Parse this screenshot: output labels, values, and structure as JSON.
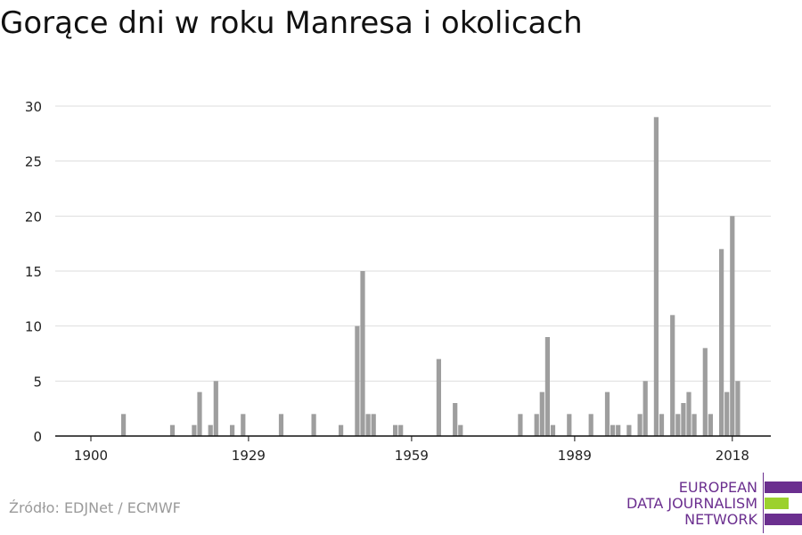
{
  "title": "Gorące dni w roku Manresa i okolicach",
  "source": "Źródło: EDJNet / ECMWF",
  "logo": {
    "lines": [
      "EUROPEAN",
      "DATA JOURNALISM",
      "NETWORK"
    ]
  },
  "colors": {
    "bar": "#9e9e9e",
    "grid": "#dddddd",
    "axis": "#111111",
    "logo_purple": "#6b2f8f",
    "logo_green": "#9cd12e"
  },
  "chart_data": {
    "type": "bar",
    "xlim": [
      1900,
      2022
    ],
    "ylim": [
      0,
      30
    ],
    "y_ticks": [
      0,
      5,
      10,
      15,
      20,
      25,
      30
    ],
    "x_ticks": [
      1900,
      1929,
      1959,
      1989,
      2018
    ],
    "grid": true,
    "xlabel": "",
    "ylabel": "",
    "x": [
      1906,
      1915,
      1919,
      1920,
      1922,
      1923,
      1926,
      1928,
      1935,
      1941,
      1946,
      1949,
      1950,
      1951,
      1952,
      1956,
      1957,
      1964,
      1967,
      1968,
      1979,
      1982,
      1983,
      1984,
      1985,
      1988,
      1992,
      1995,
      1996,
      1997,
      1999,
      2001,
      2002,
      2004,
      2005,
      2007,
      2008,
      2009,
      2010,
      2011,
      2013,
      2014,
      2016,
      2017,
      2018,
      2019
    ],
    "values": [
      2,
      1,
      1,
      4,
      1,
      5,
      1,
      2,
      2,
      2,
      1,
      10,
      15,
      2,
      2,
      1,
      1,
      7,
      3,
      1,
      2,
      2,
      4,
      9,
      1,
      2,
      2,
      4,
      1,
      1,
      1,
      2,
      5,
      29,
      2,
      11,
      2,
      3,
      4,
      2,
      8,
      2,
      17,
      4,
      20,
      5
    ]
  }
}
